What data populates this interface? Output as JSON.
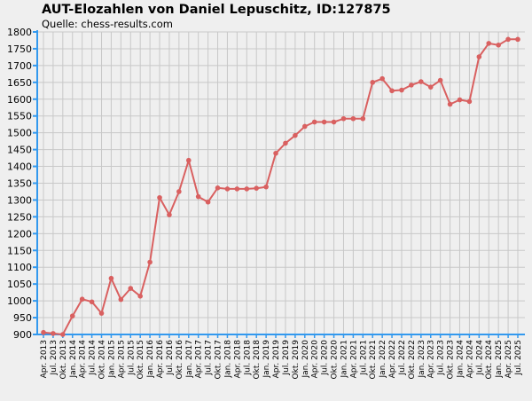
{
  "chart_data": {
    "type": "line",
    "title": "AUT-Elozahlen von Daniel Lepuschitz, ID:127875",
    "subtitle": "Quelle: chess-results.com",
    "xlabel": "",
    "ylabel": "",
    "ylim": [
      900,
      1800
    ],
    "y_ticks": [
      900,
      950,
      1000,
      1050,
      1100,
      1150,
      1200,
      1250,
      1300,
      1350,
      1400,
      1450,
      1500,
      1550,
      1600,
      1650,
      1700,
      1750,
      1800
    ],
    "grid": true,
    "legend": "none",
    "colors": {
      "line": "#d96060",
      "axis": "#3399ee",
      "grid": "#c8c8c8",
      "background": "#efefef"
    },
    "categories": [
      "Apr. 2013",
      "Jul. 2013",
      "Okt. 2013",
      "Jan. 2014",
      "Apr. 2014",
      "Jul. 2014",
      "Okt. 2014",
      "Jan. 2015",
      "Apr. 2015",
      "Jul. 2015",
      "Okt. 2015",
      "Jan. 2016",
      "Apr. 2016",
      "Jul. 2016",
      "Okt. 2016",
      "Jan. 2017",
      "Apr. 2017",
      "Jul. 2017",
      "Okt. 2017",
      "Jan. 2018",
      "Apr. 2018",
      "Jul. 2018",
      "Okt. 2018",
      "Jan. 2019",
      "Apr. 2019",
      "Jul. 2019",
      "Okt. 2019",
      "Jan. 2020",
      "Apr. 2020",
      "Jul. 2020",
      "Okt. 2020",
      "Jan. 2021",
      "Apr. 2021",
      "Jul. 2021",
      "Okt. 2021",
      "Jan. 2022",
      "Apr. 2022",
      "Jul. 2022",
      "Okt. 2022",
      "Jan. 2023",
      "Apr. 2023",
      "Jul. 2023",
      "Okt. 2023",
      "Jan. 2024",
      "Apr. 2024",
      "Jul. 2024",
      "Okt. 2024",
      "Jan. 2025",
      "Apr. 2025",
      "Jul. 2025"
    ],
    "series": [
      {
        "values": [
          906,
          903,
          900,
          955,
          1005,
          997,
          963,
          1067,
          1004,
          1037,
          1014,
          1115,
          1307,
          1256,
          1325,
          1418,
          1310,
          1294,
          1336,
          1333,
          1333,
          1333,
          1335,
          1339,
          1439,
          1469,
          1492,
          1519,
          1532,
          1532,
          1532,
          1542,
          1542,
          1542,
          1650,
          1661,
          1625,
          1627,
          1642,
          1652,
          1636,
          1656,
          1585,
          1598,
          1593,
          1726,
          1766,
          1761,
          1778,
          1778
        ]
      }
    ]
  }
}
